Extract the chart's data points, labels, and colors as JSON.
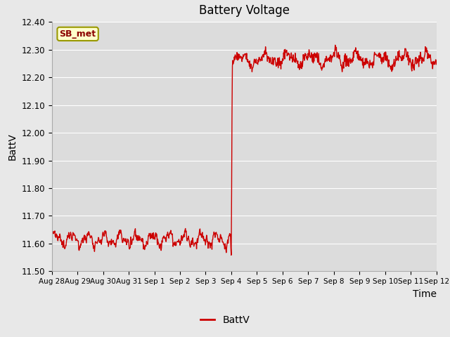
{
  "title": "Battery Voltage",
  "xlabel": "Time",
  "ylabel": "BattV",
  "ylim": [
    11.5,
    12.4
  ],
  "yticks": [
    11.5,
    11.6,
    11.7,
    11.8,
    11.9,
    12.0,
    12.1,
    12.2,
    12.3,
    12.4
  ],
  "xtick_labels": [
    "Aug 28",
    "Aug 29",
    "Aug 30",
    "Aug 31",
    "Sep 1",
    "Sep 2",
    "Sep 3",
    "Sep 4",
    "Sep 5",
    "Sep 6",
    "Sep 7",
    "Sep 8",
    "Sep 9",
    "Sep 10",
    "Sep 11",
    "Sep 12"
  ],
  "line_color": "#cc0000",
  "line_width": 1.0,
  "bg_color": "#e8e8e8",
  "plot_bg_color": "#dcdcdc",
  "grid_color": "#ffffff",
  "annotation_text": "SB_met",
  "annotation_bg": "#ffffcc",
  "annotation_border": "#999900",
  "annotation_text_color": "#8b0000",
  "legend_label": "BattV",
  "transition_day": 7.0,
  "n_points": 1000
}
